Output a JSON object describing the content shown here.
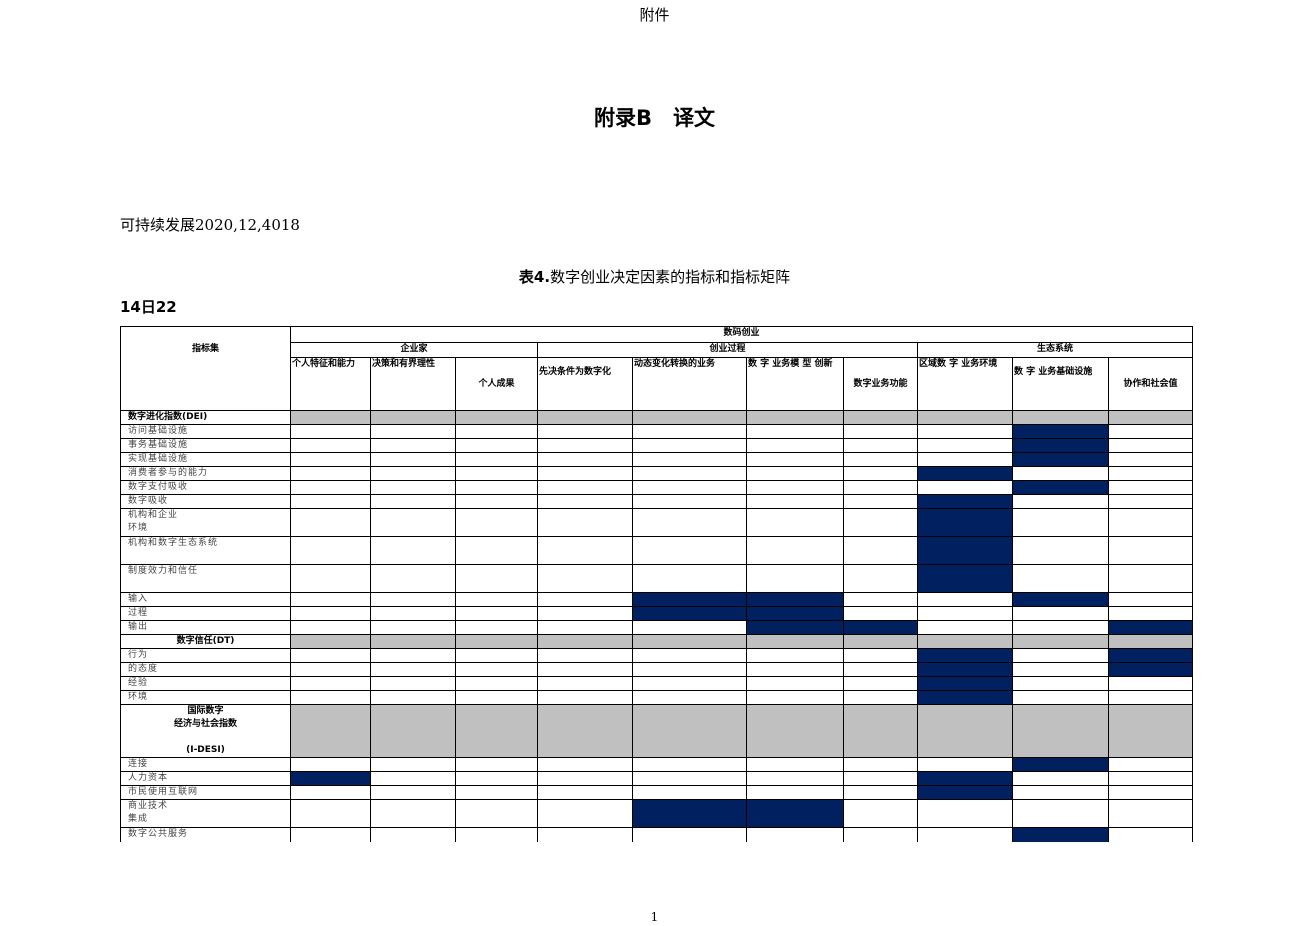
{
  "header": "附件",
  "title": "附录B　译文",
  "citation": "可持续发展2020,12,4018",
  "caption": {
    "label": "表4.",
    "text": "数字创业决定因素的指标和指标矩阵"
  },
  "page_ref": "14日22",
  "footer_page": "1",
  "colors": {
    "filled": "#002060",
    "section": "#c0c0c0"
  },
  "table": {
    "corner": "指标集",
    "top_group": "数码创业",
    "groups": [
      "企业家",
      "创业过程",
      "生态系统"
    ],
    "columns": [
      "个人特征和能力",
      "决策和有界理性",
      "个人成果",
      "先决条件为数字化",
      "动态变化转换的业务",
      "数 字 业务模 型 创新",
      "数字业务功能",
      "区域数 字 业务环境",
      "数 字 业务基础设施",
      "协作和社会值"
    ],
    "rows": [
      {
        "label": "数字进化指数(DEI)",
        "section": true,
        "filled": []
      },
      {
        "label": "访问基础设施",
        "filled": [
          8
        ]
      },
      {
        "label": "事务基础设施",
        "filled": [
          8
        ]
      },
      {
        "label": "实现基础设施",
        "filled": [
          8
        ]
      },
      {
        "label": "消费者参与的能力",
        "filled": [
          7
        ]
      },
      {
        "label": "数字支付吸收",
        "filled": [
          8
        ]
      },
      {
        "label": "数字吸收",
        "filled": [
          7
        ]
      },
      {
        "label": "机构和企业\n环境",
        "filled": [
          7
        ],
        "tall": 2
      },
      {
        "label": "机构和数字生态系统",
        "filled": [
          7
        ],
        "tall": 2
      },
      {
        "label": "制度效力和信任",
        "filled": [
          7
        ],
        "tall": 2
      },
      {
        "label": "输入",
        "filled": [
          4,
          5,
          8
        ]
      },
      {
        "label": "过程",
        "filled": [
          4,
          5
        ]
      },
      {
        "label": "输出",
        "filled": [
          5,
          6,
          9
        ]
      },
      {
        "label": "数字信任(DT)",
        "section": true,
        "center": true,
        "filled": []
      },
      {
        "label": "行为",
        "filled": [
          7,
          9
        ]
      },
      {
        "label": "的态度",
        "filled": [
          7,
          9
        ]
      },
      {
        "label": "经验",
        "filled": [
          7
        ]
      },
      {
        "label": "环境",
        "filled": [
          7
        ]
      },
      {
        "label": "国际数字\n经济与社会指数\n\n(I-DESI)",
        "section": true,
        "center": true,
        "tall": 3,
        "filled": []
      },
      {
        "label": "连接",
        "filled": [
          8
        ]
      },
      {
        "label": "人力资本",
        "filled": [
          0,
          7
        ]
      },
      {
        "label": "市民使用互联网",
        "filled": [
          7
        ]
      },
      {
        "label": "商业技术\n集成",
        "filled": [
          4,
          5
        ],
        "tall": 2
      },
      {
        "label": "数字公共服务",
        "filled": [
          8
        ]
      }
    ]
  }
}
